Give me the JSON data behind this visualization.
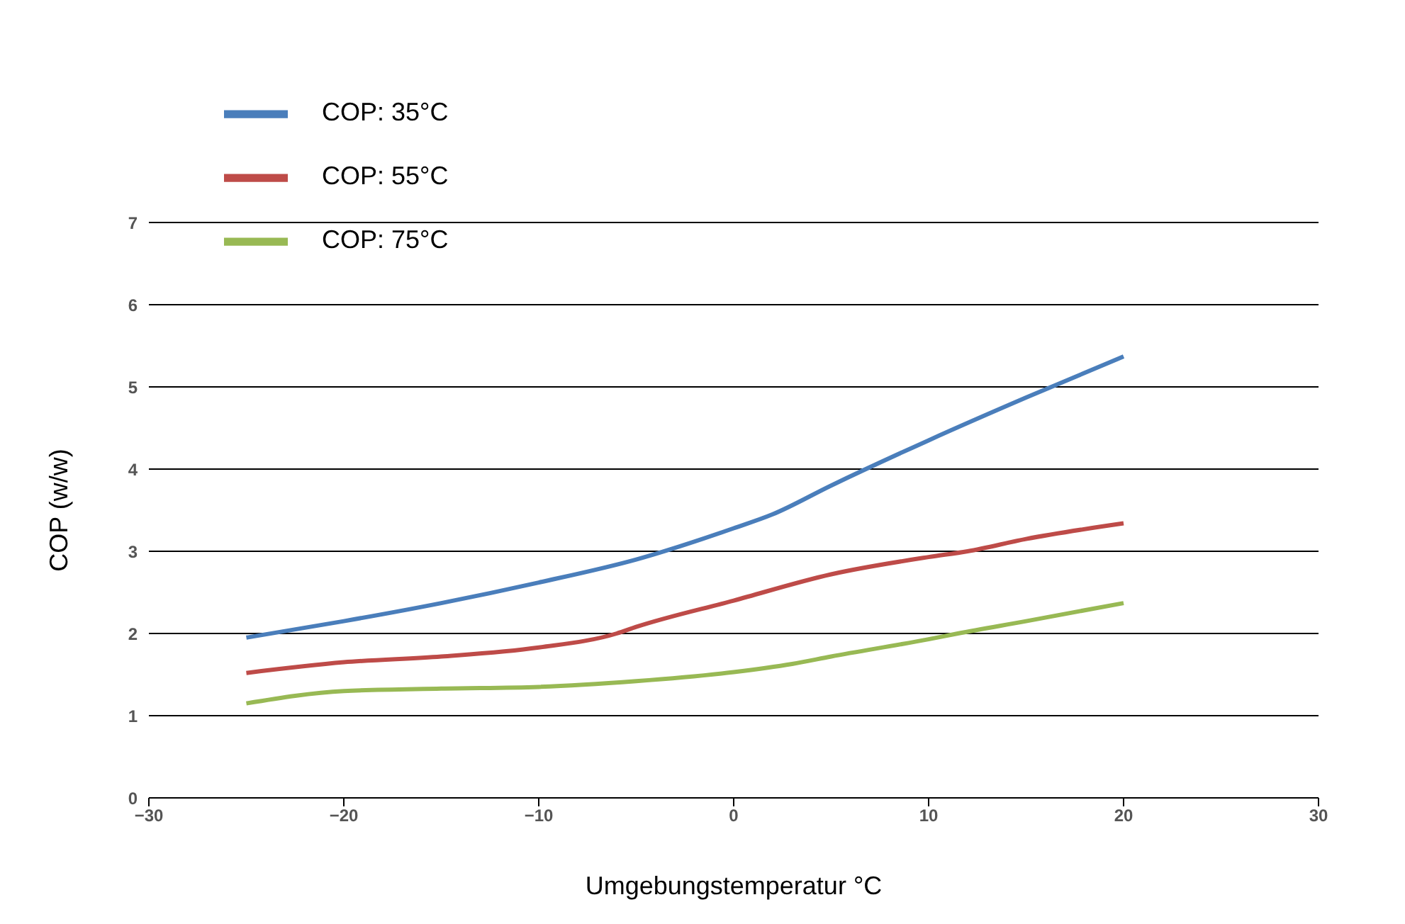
{
  "chart_data": {
    "type": "line",
    "xlabel": "Umgebungstemperatur °C",
    "ylabel": "COP (w/w)",
    "xlim": [
      -30,
      30
    ],
    "xticks": [
      {
        "value": -30,
        "label": "−30"
      },
      {
        "value": -20,
        "label": "−20"
      },
      {
        "value": -10,
        "label": "−10"
      },
      0,
      10,
      20,
      30
    ],
    "ylim": [
      0,
      7
    ],
    "yticks": [
      0,
      1,
      2,
      3,
      4,
      5,
      6,
      7
    ],
    "grid": "y",
    "legend": "top left",
    "marker": "none",
    "line_style": "solid",
    "series": [
      {
        "name": "COP: 35°C",
        "color": "#4a7ebb",
        "x": [
          -25,
          -20,
          -15,
          -10,
          -5,
          0,
          2,
          5,
          10,
          15,
          20
        ],
        "values": [
          1.95,
          2.15,
          2.37,
          2.62,
          2.9,
          3.28,
          3.45,
          3.8,
          4.35,
          4.87,
          5.37
        ]
      },
      {
        "name": "COP: 55°C",
        "color": "#be4b48",
        "x": [
          -25,
          -20,
          -15,
          -10,
          -6,
          -5,
          0,
          5,
          10,
          12,
          15,
          20
        ],
        "values": [
          1.52,
          1.65,
          1.72,
          1.83,
          2.0,
          2.08,
          2.4,
          2.72,
          2.93,
          3.0,
          3.15,
          3.34
        ]
      },
      {
        "name": "COP: 75°C",
        "color": "#98b954",
        "x": [
          -25,
          -20,
          -15,
          -10,
          -5,
          0,
          3,
          5,
          10,
          11.5,
          15,
          20
        ],
        "values": [
          1.15,
          1.3,
          1.33,
          1.35,
          1.42,
          1.53,
          1.63,
          1.72,
          1.93,
          2.0,
          2.15,
          2.37
        ]
      }
    ]
  }
}
